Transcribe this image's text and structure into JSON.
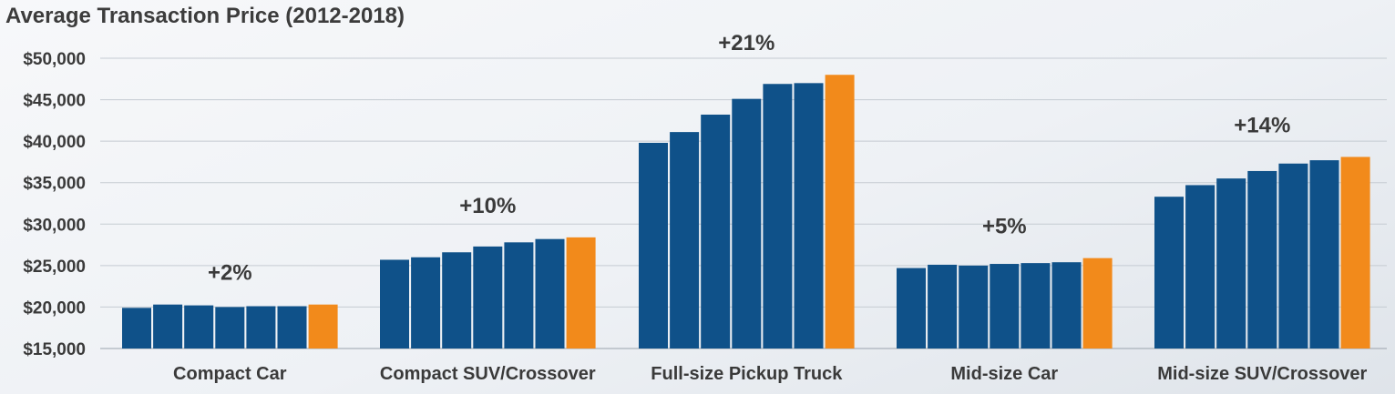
{
  "chart_data": {
    "type": "bar",
    "title": "Average Transaction Price (2012-2018)",
    "xlabel": "",
    "ylabel": "",
    "ylim": [
      15000,
      50000
    ],
    "yticks": [
      15000,
      20000,
      25000,
      30000,
      35000,
      40000,
      45000,
      50000
    ],
    "ytick_labels": [
      "$15,000",
      "$20,000",
      "$25,000",
      "$30,000",
      "$35,000",
      "$40,000",
      "$45,000",
      "$50,000"
    ],
    "grid": true,
    "legend": "none",
    "colors": {
      "prior_years": "#0f5189",
      "latest_year": "#f28a1b"
    },
    "categories": [
      {
        "name": "Compact Car",
        "change": "+2%",
        "values": [
          19900,
          20300,
          20200,
          20000,
          20100,
          20100,
          20300
        ]
      },
      {
        "name": "Compact SUV/Crossover",
        "change": "+10%",
        "values": [
          25700,
          26000,
          26600,
          27300,
          27800,
          28200,
          28400
        ]
      },
      {
        "name": "Full-size Pickup Truck",
        "change": "+21%",
        "values": [
          39800,
          41100,
          43200,
          45100,
          46900,
          47000,
          48000
        ]
      },
      {
        "name": "Mid-size Car",
        "change": "+5%",
        "values": [
          24700,
          25100,
          25000,
          25200,
          25300,
          25400,
          25900
        ]
      },
      {
        "name": "Mid-size SUV/Crossover",
        "change": "+14%",
        "values": [
          33300,
          34700,
          35500,
          36400,
          37300,
          37700,
          38100
        ]
      }
    ]
  }
}
